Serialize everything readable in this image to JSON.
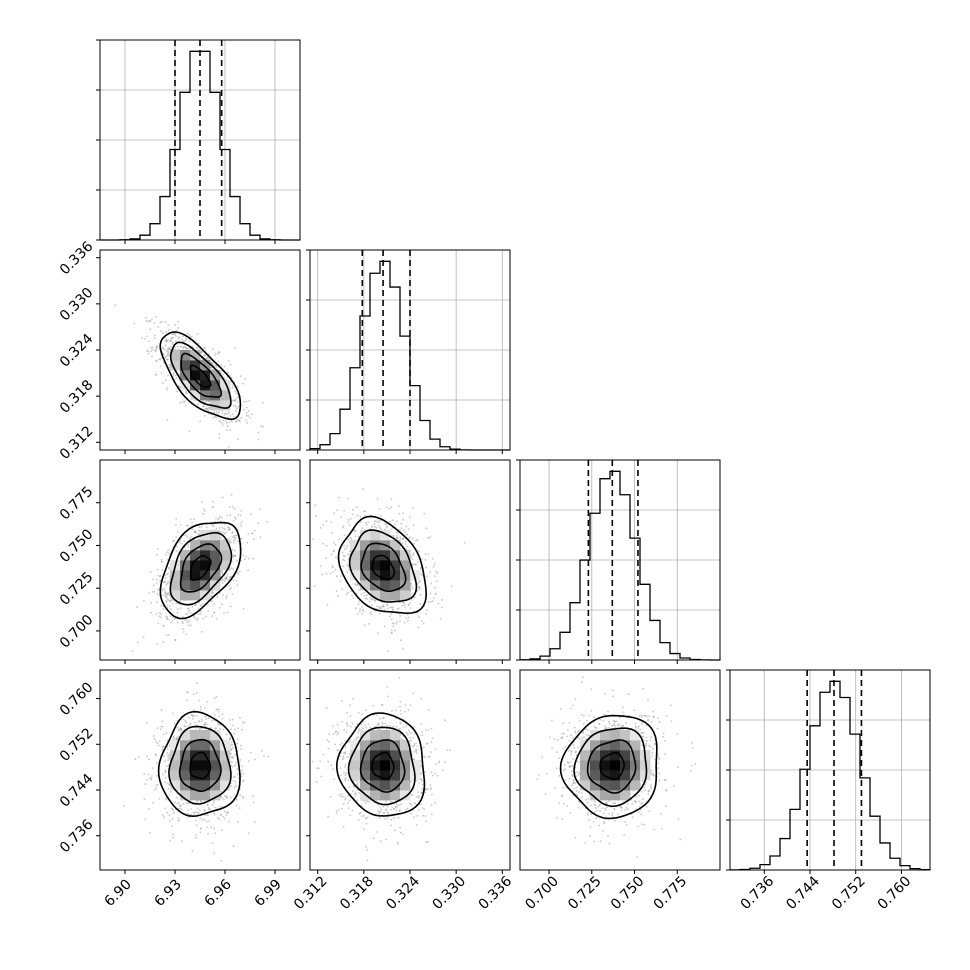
{
  "chart_data": {
    "type": "corner",
    "parameters": [
      {
        "mean": 6.945,
        "quantiles": [
          6.93,
          6.945,
          6.958
        ],
        "sigma": 0.012,
        "range": [
          6.885,
          7.005
        ],
        "ticks": [
          6.9,
          6.93,
          6.96,
          6.99
        ],
        "tick_labels": [
          "6.90",
          "6.93",
          "6.96",
          "6.99"
        ]
      },
      {
        "mean": 0.3205,
        "quantiles": [
          0.3178,
          0.3205,
          0.324
        ],
        "sigma": 0.0028,
        "range": [
          0.311,
          0.337
        ],
        "ticks": [
          0.312,
          0.318,
          0.324,
          0.33,
          0.336
        ],
        "tick_labels": [
          "0.312",
          "0.318",
          "0.324",
          "0.330",
          "0.336"
        ]
      },
      {
        "mean": 0.737,
        "quantiles": [
          0.723,
          0.737,
          0.752
        ],
        "sigma": 0.014,
        "range": [
          0.683,
          0.8
        ],
        "ticks": [
          0.7,
          0.725,
          0.75,
          0.775
        ],
        "tick_labels": [
          "0.700",
          "0.725",
          "0.750",
          "0.775"
        ]
      },
      {
        "mean": 0.7482,
        "quantiles": [
          0.7435,
          0.7482,
          0.753
        ],
        "sigma": 0.0045,
        "range": [
          0.73,
          0.765
        ],
        "ticks": [
          0.736,
          0.744,
          0.752,
          0.76
        ],
        "tick_labels": [
          "0.736",
          "0.744",
          "0.752",
          "0.760"
        ]
      }
    ],
    "correlations": [
      [
        1.0,
        -0.7,
        0.45,
        0.0
      ],
      [
        -0.7,
        1.0,
        -0.3,
        -0.05
      ],
      [
        0.45,
        -0.3,
        1.0,
        0.05
      ],
      [
        0.0,
        -0.05,
        0.05,
        1.0
      ]
    ],
    "grid": true
  }
}
